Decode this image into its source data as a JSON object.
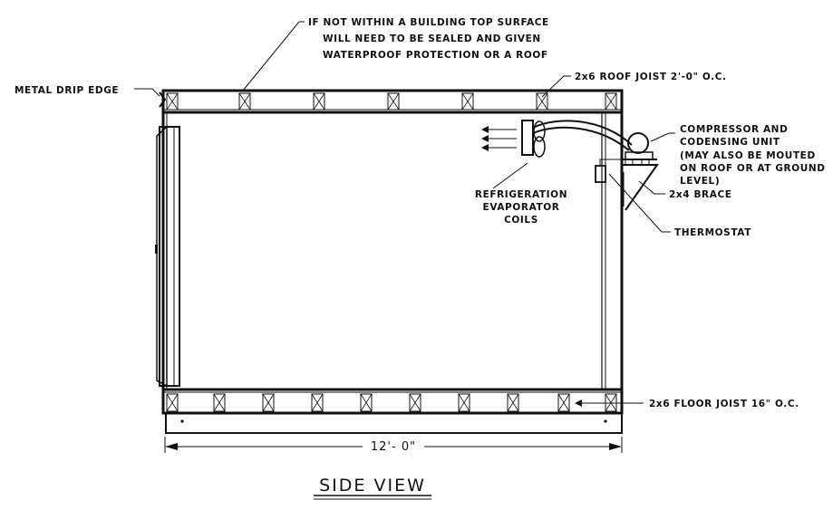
{
  "title": "SIDE VIEW",
  "dimension": "12'- 0\"",
  "notes": {
    "top_surface": [
      "IF NOT WITHIN A BUILDING TOP SURFACE",
      "WILL NEED TO BE SEALED AND GIVEN",
      "WATERPROOF PROTECTION OR A ROOF"
    ],
    "drip_edge": "METAL DRIP EDGE",
    "roof_joist": "2x6 ROOF JOIST 2'-0\" O.C.",
    "compressor": [
      "COMPRESSOR AND",
      "CODENSING UNIT",
      "(MAY ALSO BE MOUTED",
      "ON ROOF OR AT GROUND",
      "LEVEL)"
    ],
    "evaporator": [
      "REFRIGERATION",
      "EVAPORATOR",
      "COILS"
    ],
    "brace": "2x4 BRACE",
    "thermostat": "THERMOSTAT",
    "floor_joist": "2x6 FLOOR JOIST 16\" O.C."
  },
  "colors": {
    "ink": "#111111",
    "paper": "#ffffff"
  }
}
